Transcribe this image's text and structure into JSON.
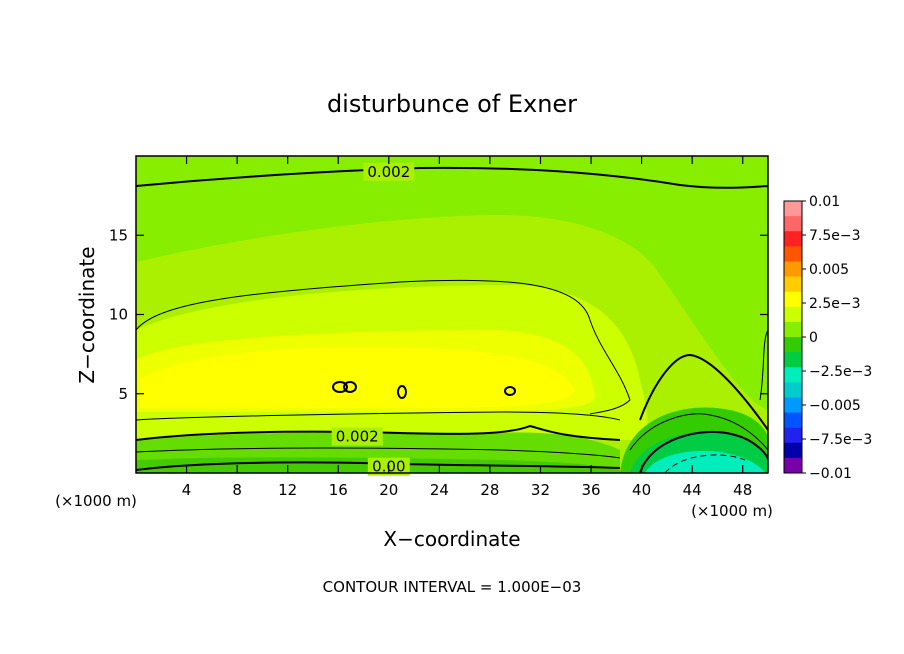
{
  "chart_data": {
    "type": "heatmap",
    "title": "disturbunce of Exner",
    "xlabel": "X−coordinate",
    "ylabel": "Z−coordinate",
    "x_unit_left": "(×1000 m)",
    "x_unit_right": "(×1000 m)",
    "xlim": [
      0,
      50
    ],
    "ylim": [
      0,
      20
    ],
    "x_ticks": [
      4,
      8,
      12,
      16,
      20,
      24,
      28,
      32,
      36,
      40,
      44,
      48
    ],
    "y_ticks": [
      5,
      10,
      15
    ],
    "x_tick_labels": [
      "4",
      "8",
      "12",
      "16",
      "20",
      "24",
      "28",
      "32",
      "36",
      "40",
      "44",
      "48"
    ],
    "y_tick_labels": [
      "5",
      "10",
      "15"
    ],
    "contour_labels": [
      {
        "text": "0.002",
        "x": 20.0,
        "z": 19.0
      },
      {
        "text": "0.002",
        "x": 17.5,
        "z": 2.3
      },
      {
        "text": "0.00",
        "x": 20.0,
        "z": 0.4
      }
    ],
    "contour_interval_text": "CONTOUR INTERVAL = 1.000E−03",
    "colorbar": {
      "labels": [
        "0.01",
        "7.5e−3",
        "0.005",
        "2.5e−3",
        "0",
        "−2.5e−3",
        "−0.005",
        "−7.5e−3",
        "−0.01"
      ],
      "levels": [
        0.01,
        0.0075,
        0.005,
        0.0025,
        0,
        -0.0025,
        -0.005,
        -0.0075,
        -0.01
      ],
      "colors_top_to_bottom": [
        "#ff9999",
        "#ff6666",
        "#ff2222",
        "#ff5500",
        "#ff9900",
        "#ffcc00",
        "#ffff00",
        "#ccff00",
        "#88ee00",
        "#33cc00",
        "#00cc44",
        "#00eebb",
        "#00cccc",
        "#0099ff",
        "#0055ff",
        "#2222ee",
        "#0000aa",
        "#7700aa"
      ]
    },
    "field_description_levels": {
      "top_band": 0.0015,
      "middle_plateau": 0.0032,
      "surface_band": 0.0,
      "lower_right_minimum": -0.002
    }
  }
}
